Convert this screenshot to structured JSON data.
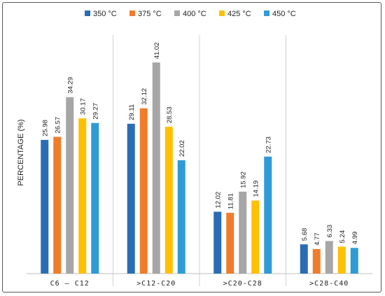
{
  "chart_data": {
    "type": "bar",
    "categories": [
      "C6 – C12",
      ">C12-C20",
      ">C20-C28",
      ">C28-C40"
    ],
    "series": [
      {
        "name": "350 °C",
        "color": "#2a6db5",
        "values": [
          25.98,
          29.11,
          12.02,
          5.68
        ]
      },
      {
        "name": "375 °C",
        "color": "#f07c2a",
        "values": [
          26.57,
          32.12,
          11.81,
          4.77
        ]
      },
      {
        "name": "400 °C",
        "color": "#a6a6a6",
        "values": [
          34.29,
          41.02,
          15.92,
          6.33
        ]
      },
      {
        "name": "425 °C",
        "color": "#ffc000",
        "values": [
          30.17,
          28.53,
          14.19,
          5.24
        ]
      },
      {
        "name": "450 °C",
        "color": "#2f9bd6",
        "values": [
          29.27,
          22.02,
          22.73,
          4.99
        ]
      }
    ],
    "ylabel": "PERCENTAGE (%)",
    "ylim": [
      0,
      45
    ],
    "grid": false,
    "legend_position": "top-center",
    "value_labels": true,
    "value_label_orientation": "vertical"
  }
}
